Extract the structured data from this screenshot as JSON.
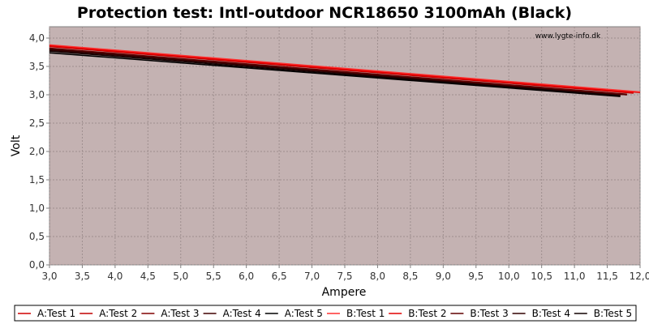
{
  "chart_data": {
    "type": "line",
    "title": "Protection test: Intl-outdoor NCR18650 3100mAh (Black)",
    "xlabel": "Ampere",
    "ylabel": "Volt",
    "watermark": "www.lygte-info.dk",
    "xlim": [
      3.0,
      12.0
    ],
    "ylim": [
      0.0,
      4.2
    ],
    "x_ticks": [
      "3,0",
      "3,5",
      "4,0",
      "4,5",
      "5,0",
      "5,5",
      "6,0",
      "6,5",
      "7,0",
      "7,5",
      "8,0",
      "8,5",
      "9,0",
      "9,5",
      "10,0",
      "10,5",
      "11,0",
      "11,5",
      "12,0"
    ],
    "y_ticks": [
      "0,0",
      "0,5",
      "1,0",
      "1,5",
      "2,0",
      "2,5",
      "3,0",
      "3,5",
      "4,0"
    ],
    "grid": true,
    "plot_background": "#c4b2b2",
    "legend_position": "bottom",
    "series": [
      {
        "name": "A:Test 1",
        "color": "#d00000",
        "x": [
          3.0,
          12.0
        ],
        "y": [
          3.87,
          3.04
        ]
      },
      {
        "name": "A:Test 2",
        "color": "#c00000",
        "x": [
          3.0,
          11.9
        ],
        "y": [
          3.85,
          3.03
        ]
      },
      {
        "name": "A:Test 3",
        "color": "#800000",
        "x": [
          3.0,
          11.8
        ],
        "y": [
          3.81,
          3.0
        ]
      },
      {
        "name": "A:Test 4",
        "color": "#400000",
        "x": [
          3.0,
          11.8
        ],
        "y": [
          3.79,
          3.0
        ]
      },
      {
        "name": "A:Test 5",
        "color": "#000000",
        "x": [
          3.0,
          11.7
        ],
        "y": [
          3.74,
          2.97
        ]
      },
      {
        "name": "B:Test 1",
        "color": "#ff3030",
        "x": [
          3.0,
          12.0
        ],
        "y": [
          3.88,
          3.05
        ]
      },
      {
        "name": "B:Test 2",
        "color": "#e00000",
        "x": [
          3.0,
          11.9
        ],
        "y": [
          3.86,
          3.04
        ]
      },
      {
        "name": "B:Test 3",
        "color": "#600000",
        "x": [
          3.0,
          11.8
        ],
        "y": [
          3.82,
          3.01
        ]
      },
      {
        "name": "B:Test 4",
        "color": "#300000",
        "x": [
          3.0,
          11.7
        ],
        "y": [
          3.8,
          2.99
        ]
      },
      {
        "name": "B:Test 5",
        "color": "#100000",
        "x": [
          3.0,
          11.7
        ],
        "y": [
          3.77,
          2.98
        ]
      }
    ]
  }
}
